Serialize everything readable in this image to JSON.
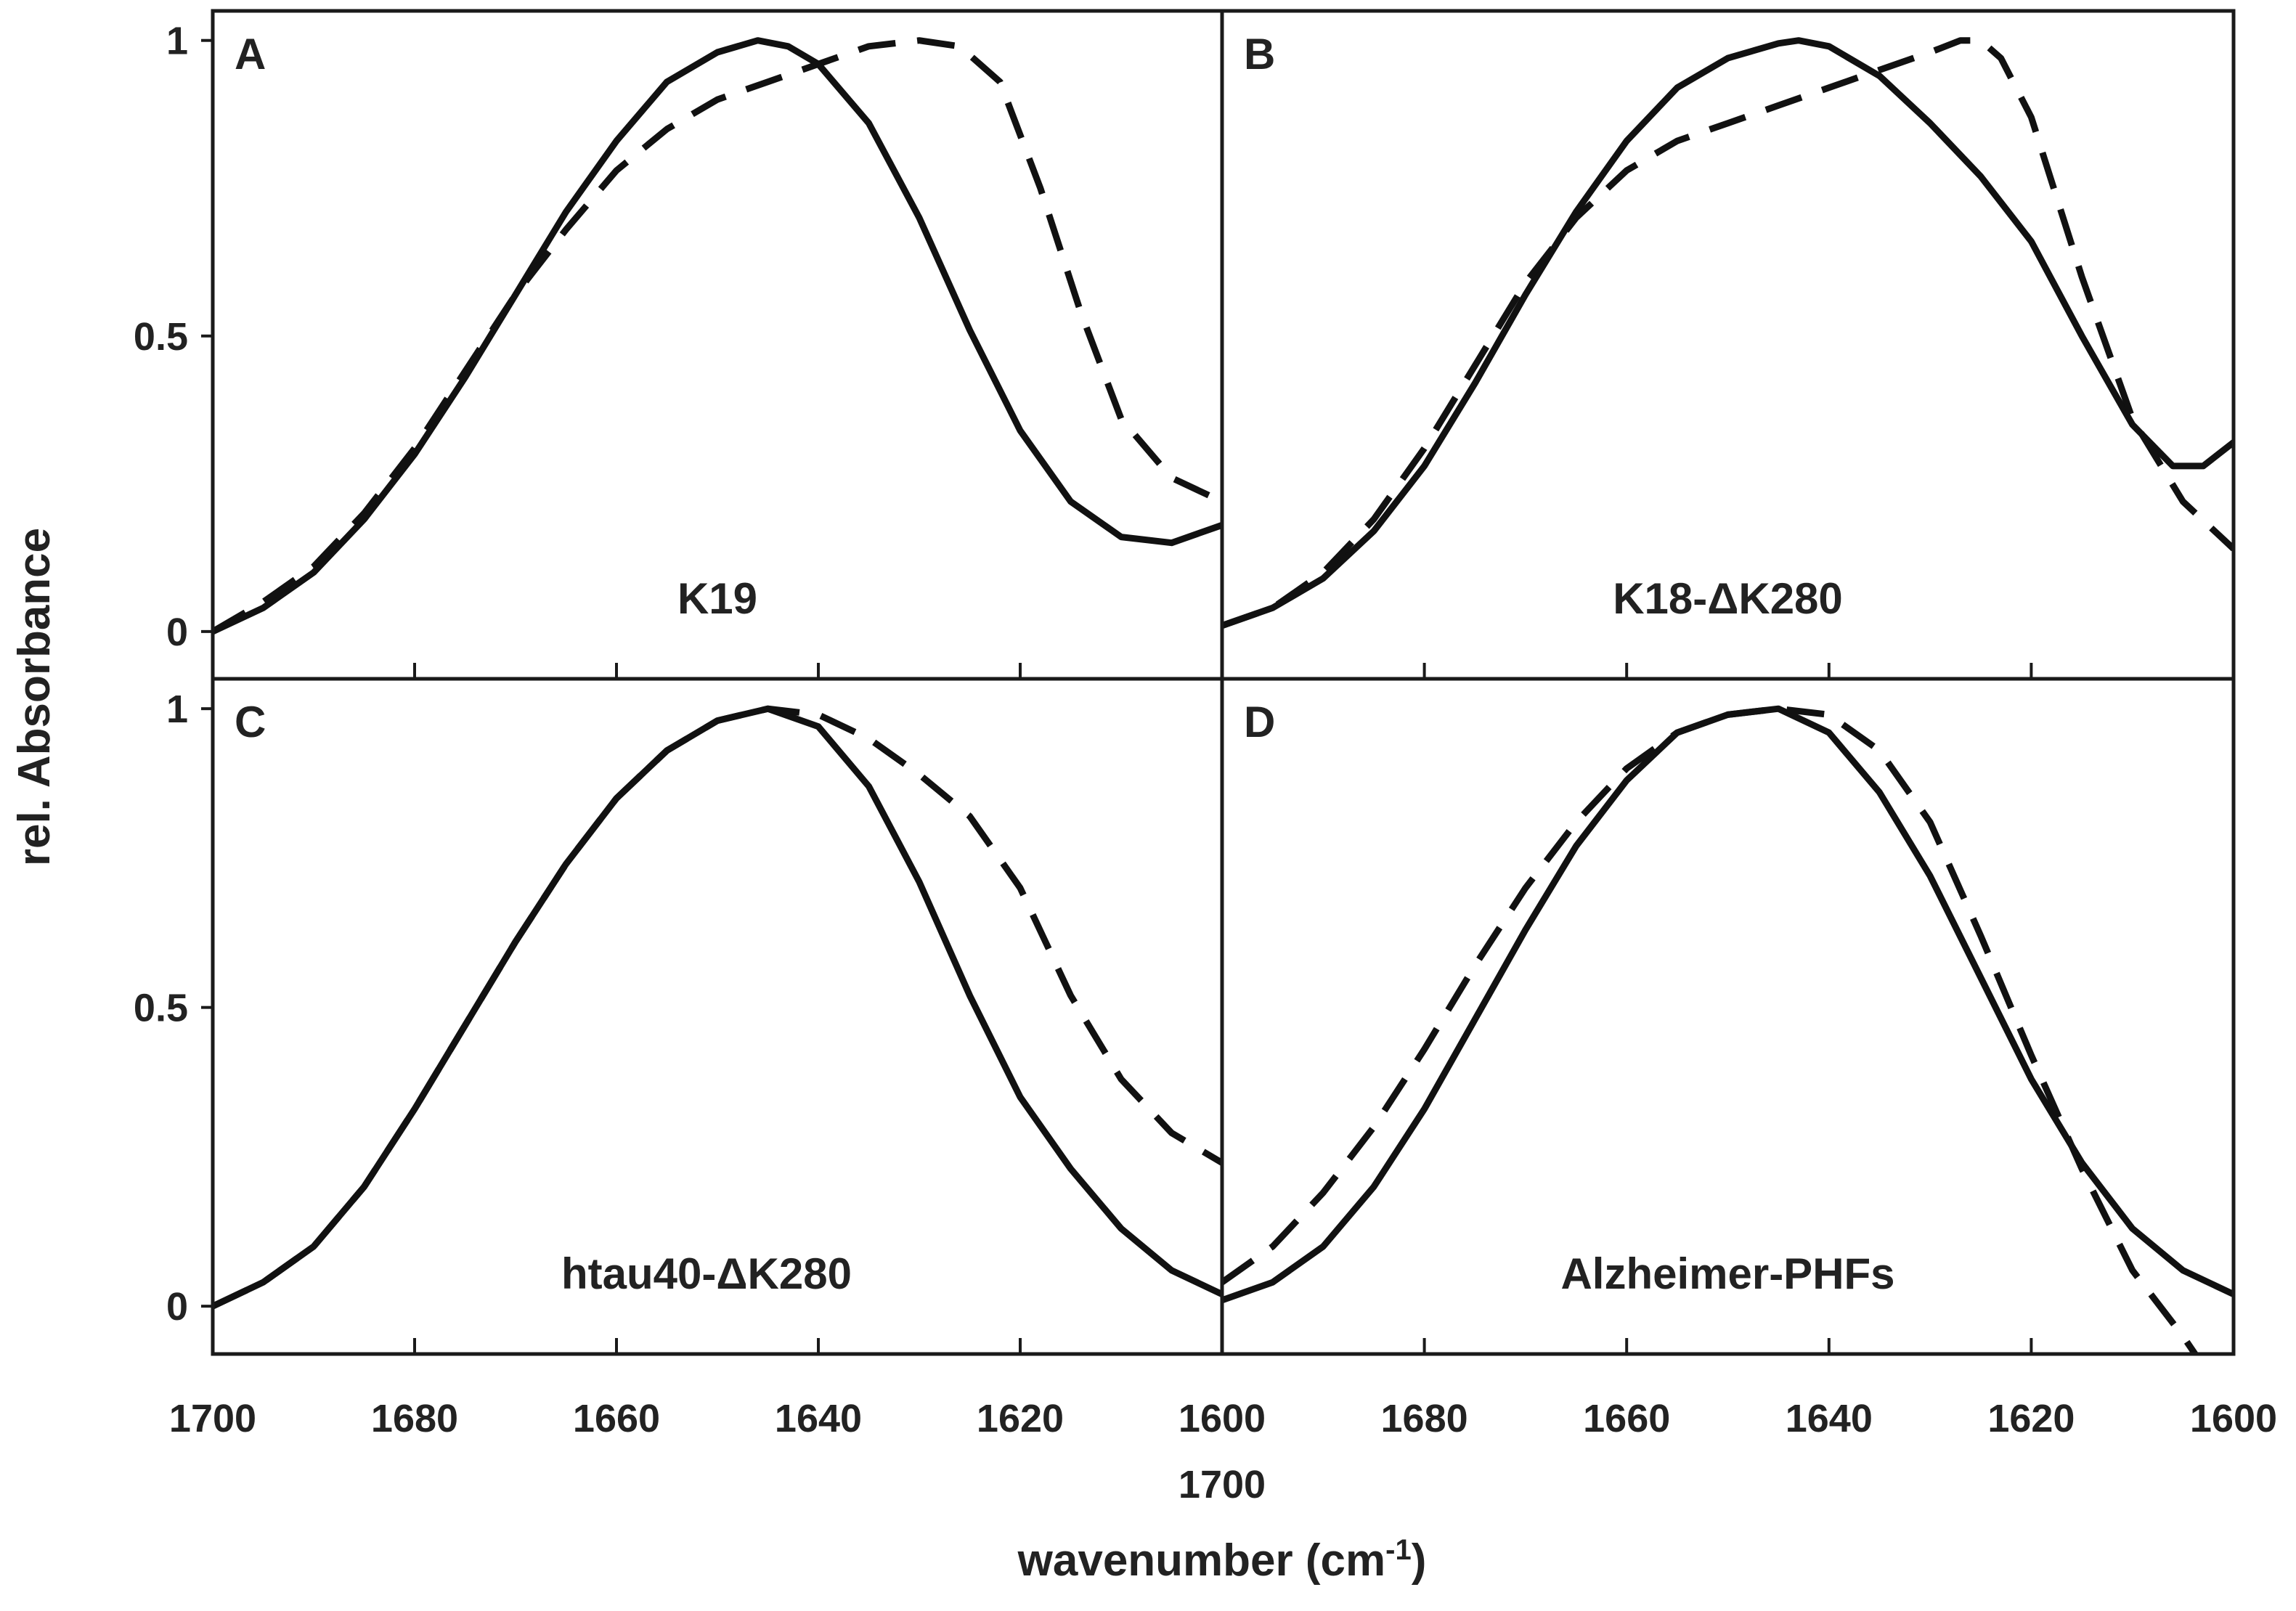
{
  "figure": {
    "ylabel": "rel. Absorbance",
    "xlabel_main": "wavenumber (cm",
    "xlabel_sup": "-1",
    "xlabel_close": ")",
    "mid_tick_upper": "1600",
    "mid_tick_lower": "1700"
  },
  "colors": {
    "line": "#111111",
    "frame": "#1a1a1a",
    "text": "#222222",
    "background": "#ffffff"
  },
  "chart_data": [
    {
      "panel": "A",
      "sample_label": "K19",
      "type": "line",
      "xlim": [
        1700,
        1600
      ],
      "ylim": [
        -0.08,
        1.05
      ],
      "x_ticks": [
        1700,
        1680,
        1660,
        1640,
        1620
      ],
      "y_ticks": [
        0,
        0.5,
        1
      ],
      "y_tick_labels": [
        "0",
        "0.5",
        "1"
      ],
      "series": [
        {
          "style": "solid",
          "x": [
            1700,
            1695,
            1690,
            1685,
            1680,
            1675,
            1670,
            1665,
            1660,
            1655,
            1650,
            1646,
            1643,
            1640,
            1635,
            1630,
            1625,
            1620,
            1615,
            1610,
            1605,
            1600
          ],
          "y": [
            0.0,
            0.04,
            0.1,
            0.19,
            0.3,
            0.43,
            0.57,
            0.71,
            0.83,
            0.93,
            0.98,
            1.0,
            0.99,
            0.96,
            0.86,
            0.7,
            0.51,
            0.34,
            0.22,
            0.16,
            0.15,
            0.18
          ]
        },
        {
          "style": "dashed",
          "x": [
            1700,
            1695,
            1690,
            1685,
            1680,
            1675,
            1670,
            1665,
            1660,
            1655,
            1650,
            1645,
            1640,
            1635,
            1630,
            1626,
            1622,
            1618,
            1614,
            1610,
            1605,
            1600
          ],
          "y": [
            0.0,
            0.05,
            0.11,
            0.2,
            0.31,
            0.44,
            0.57,
            0.68,
            0.78,
            0.85,
            0.9,
            0.93,
            0.96,
            0.99,
            1.0,
            0.99,
            0.93,
            0.75,
            0.54,
            0.36,
            0.26,
            0.22
          ]
        }
      ]
    },
    {
      "panel": "B",
      "sample_label": "K18-ΔK280",
      "type": "line",
      "xlim": [
        1700,
        1600
      ],
      "ylim": [
        -0.08,
        1.05
      ],
      "x_ticks": [
        1680,
        1660,
        1640,
        1620
      ],
      "y_ticks": [
        0,
        0.5,
        1
      ],
      "series": [
        {
          "style": "solid",
          "x": [
            1700,
            1695,
            1690,
            1685,
            1680,
            1675,
            1670,
            1665,
            1660,
            1655,
            1650,
            1645,
            1643,
            1640,
            1635,
            1630,
            1625,
            1620,
            1615,
            1610,
            1606,
            1603,
            1600
          ],
          "y": [
            0.01,
            0.04,
            0.09,
            0.17,
            0.28,
            0.42,
            0.57,
            0.71,
            0.83,
            0.92,
            0.97,
            0.995,
            1.0,
            0.99,
            0.94,
            0.86,
            0.77,
            0.66,
            0.5,
            0.35,
            0.28,
            0.28,
            0.32
          ]
        },
        {
          "style": "dashed",
          "x": [
            1700,
            1695,
            1690,
            1685,
            1680,
            1675,
            1670,
            1665,
            1660,
            1655,
            1650,
            1645,
            1640,
            1635,
            1630,
            1627,
            1625,
            1623,
            1620,
            1615,
            1610,
            1605,
            1600
          ],
          "y": [
            0.01,
            0.04,
            0.1,
            0.19,
            0.31,
            0.45,
            0.59,
            0.7,
            0.78,
            0.83,
            0.86,
            0.89,
            0.92,
            0.95,
            0.98,
            1.0,
            1.0,
            0.97,
            0.87,
            0.6,
            0.36,
            0.22,
            0.14
          ]
        }
      ]
    },
    {
      "panel": "C",
      "sample_label": "htau40-ΔK280",
      "type": "line",
      "xlim": [
        1700,
        1600
      ],
      "ylim": [
        -0.08,
        1.05
      ],
      "x_ticks": [
        1700,
        1680,
        1660,
        1640,
        1620
      ],
      "y_ticks": [
        0,
        0.5,
        1
      ],
      "y_tick_labels": [
        "0",
        "0.5",
        "1"
      ],
      "series": [
        {
          "style": "solid",
          "x": [
            1700,
            1695,
            1690,
            1685,
            1680,
            1675,
            1670,
            1665,
            1660,
            1655,
            1650,
            1645,
            1640,
            1635,
            1630,
            1625,
            1620,
            1615,
            1610,
            1605,
            1600
          ],
          "y": [
            0.0,
            0.04,
            0.1,
            0.2,
            0.33,
            0.47,
            0.61,
            0.74,
            0.85,
            0.93,
            0.98,
            1.0,
            0.97,
            0.87,
            0.71,
            0.52,
            0.35,
            0.23,
            0.13,
            0.06,
            0.02
          ]
        },
        {
          "style": "dashed",
          "x": [
            1700,
            1695,
            1690,
            1685,
            1680,
            1675,
            1670,
            1665,
            1660,
            1655,
            1650,
            1645,
            1640,
            1635,
            1630,
            1625,
            1620,
            1615,
            1610,
            1605,
            1600
          ],
          "y": [
            0.0,
            0.04,
            0.1,
            0.2,
            0.33,
            0.47,
            0.61,
            0.74,
            0.85,
            0.93,
            0.98,
            1.0,
            0.99,
            0.95,
            0.89,
            0.82,
            0.7,
            0.52,
            0.38,
            0.29,
            0.24
          ]
        }
      ]
    },
    {
      "panel": "D",
      "sample_label": "Alzheimer-PHFs",
      "type": "line",
      "xlim": [
        1700,
        1600
      ],
      "ylim": [
        -0.08,
        1.05
      ],
      "x_ticks": [
        1700,
        1680,
        1660,
        1640,
        1620,
        1600
      ],
      "x_tick_labels": [
        "",
        "1680",
        "1660",
        "1640",
        "1620",
        "1600"
      ],
      "y_ticks": [
        0,
        0.5,
        1
      ],
      "series": [
        {
          "style": "solid",
          "x": [
            1700,
            1695,
            1690,
            1685,
            1680,
            1675,
            1670,
            1665,
            1660,
            1655,
            1650,
            1645,
            1640,
            1635,
            1630,
            1625,
            1620,
            1615,
            1610,
            1605,
            1600
          ],
          "y": [
            0.01,
            0.04,
            0.1,
            0.2,
            0.33,
            0.48,
            0.63,
            0.77,
            0.88,
            0.96,
            0.99,
            1.0,
            0.96,
            0.86,
            0.72,
            0.55,
            0.38,
            0.24,
            0.13,
            0.06,
            0.02
          ]
        },
        {
          "style": "dashed",
          "x": [
            1700,
            1695,
            1690,
            1685,
            1680,
            1675,
            1670,
            1665,
            1660,
            1655,
            1650,
            1645,
            1640,
            1635,
            1630,
            1625,
            1620,
            1615,
            1610,
            1605,
            1603
          ],
          "y": [
            0.04,
            0.1,
            0.19,
            0.3,
            0.43,
            0.57,
            0.7,
            0.81,
            0.9,
            0.96,
            0.99,
            1.0,
            0.99,
            0.93,
            0.81,
            0.62,
            0.42,
            0.23,
            0.06,
            -0.05,
            -0.1
          ]
        }
      ]
    }
  ]
}
